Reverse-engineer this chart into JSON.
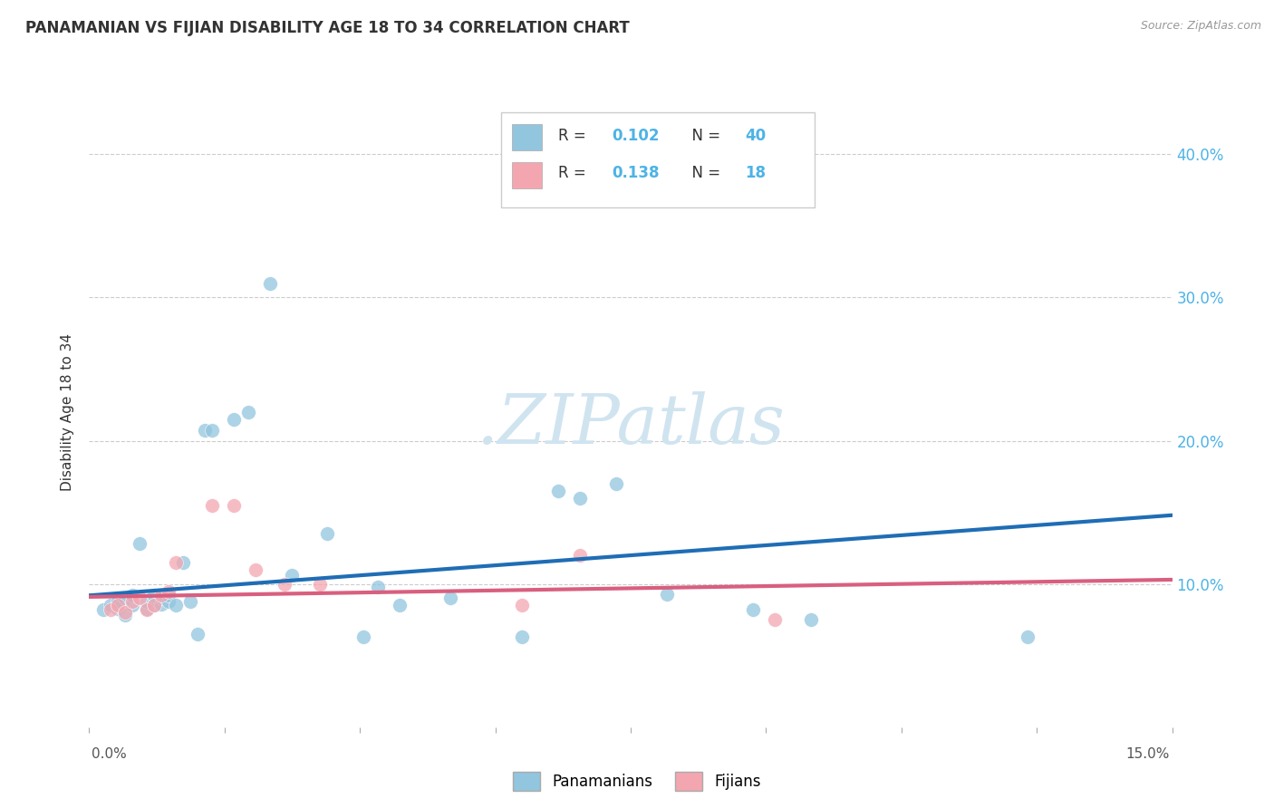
{
  "title": "PANAMANIAN VS FIJIAN DISABILITY AGE 18 TO 34 CORRELATION CHART",
  "source": "Source: ZipAtlas.com",
  "ylabel": "Disability Age 18 to 34",
  "ytick_values": [
    0.0,
    0.1,
    0.2,
    0.3,
    0.4
  ],
  "xlim": [
    0.0,
    0.15
  ],
  "ylim": [
    0.0,
    0.44
  ],
  "blue_color": "#92c5de",
  "pink_color": "#f4a6b0",
  "line_blue": "#1f6db5",
  "line_pink": "#d95f7f",
  "watermark_color": "#d0e4f0",
  "grid_color": "#cccccc",
  "bg_color": "#ffffff",
  "blue_r": "0.102",
  "blue_n": "40",
  "pink_r": "0.138",
  "pink_n": "18",
  "blue_line_x": [
    0.0,
    0.15
  ],
  "blue_line_y": [
    0.092,
    0.148
  ],
  "pink_line_x": [
    0.0,
    0.15
  ],
  "pink_line_y": [
    0.091,
    0.103
  ],
  "blue_scatter_x": [
    0.002,
    0.003,
    0.004,
    0.004,
    0.005,
    0.005,
    0.006,
    0.006,
    0.007,
    0.008,
    0.008,
    0.009,
    0.009,
    0.01,
    0.01,
    0.011,
    0.011,
    0.012,
    0.013,
    0.014,
    0.015,
    0.016,
    0.017,
    0.02,
    0.022,
    0.025,
    0.028,
    0.033,
    0.038,
    0.04,
    0.043,
    0.05,
    0.06,
    0.065,
    0.068,
    0.073,
    0.08,
    0.092,
    0.1,
    0.13
  ],
  "blue_scatter_y": [
    0.082,
    0.085,
    0.083,
    0.088,
    0.078,
    0.09,
    0.085,
    0.092,
    0.128,
    0.083,
    0.088,
    0.085,
    0.092,
    0.086,
    0.09,
    0.088,
    0.092,
    0.085,
    0.115,
    0.088,
    0.065,
    0.207,
    0.207,
    0.215,
    0.22,
    0.31,
    0.106,
    0.135,
    0.063,
    0.098,
    0.085,
    0.09,
    0.063,
    0.165,
    0.16,
    0.17,
    0.093,
    0.082,
    0.075,
    0.063
  ],
  "pink_scatter_x": [
    0.003,
    0.004,
    0.005,
    0.006,
    0.007,
    0.008,
    0.009,
    0.01,
    0.011,
    0.012,
    0.017,
    0.02,
    0.023,
    0.027,
    0.032,
    0.06,
    0.068,
    0.095
  ],
  "pink_scatter_y": [
    0.082,
    0.085,
    0.08,
    0.088,
    0.09,
    0.082,
    0.085,
    0.092,
    0.095,
    0.115,
    0.155,
    0.155,
    0.11,
    0.1,
    0.1,
    0.085,
    0.12,
    0.075
  ]
}
